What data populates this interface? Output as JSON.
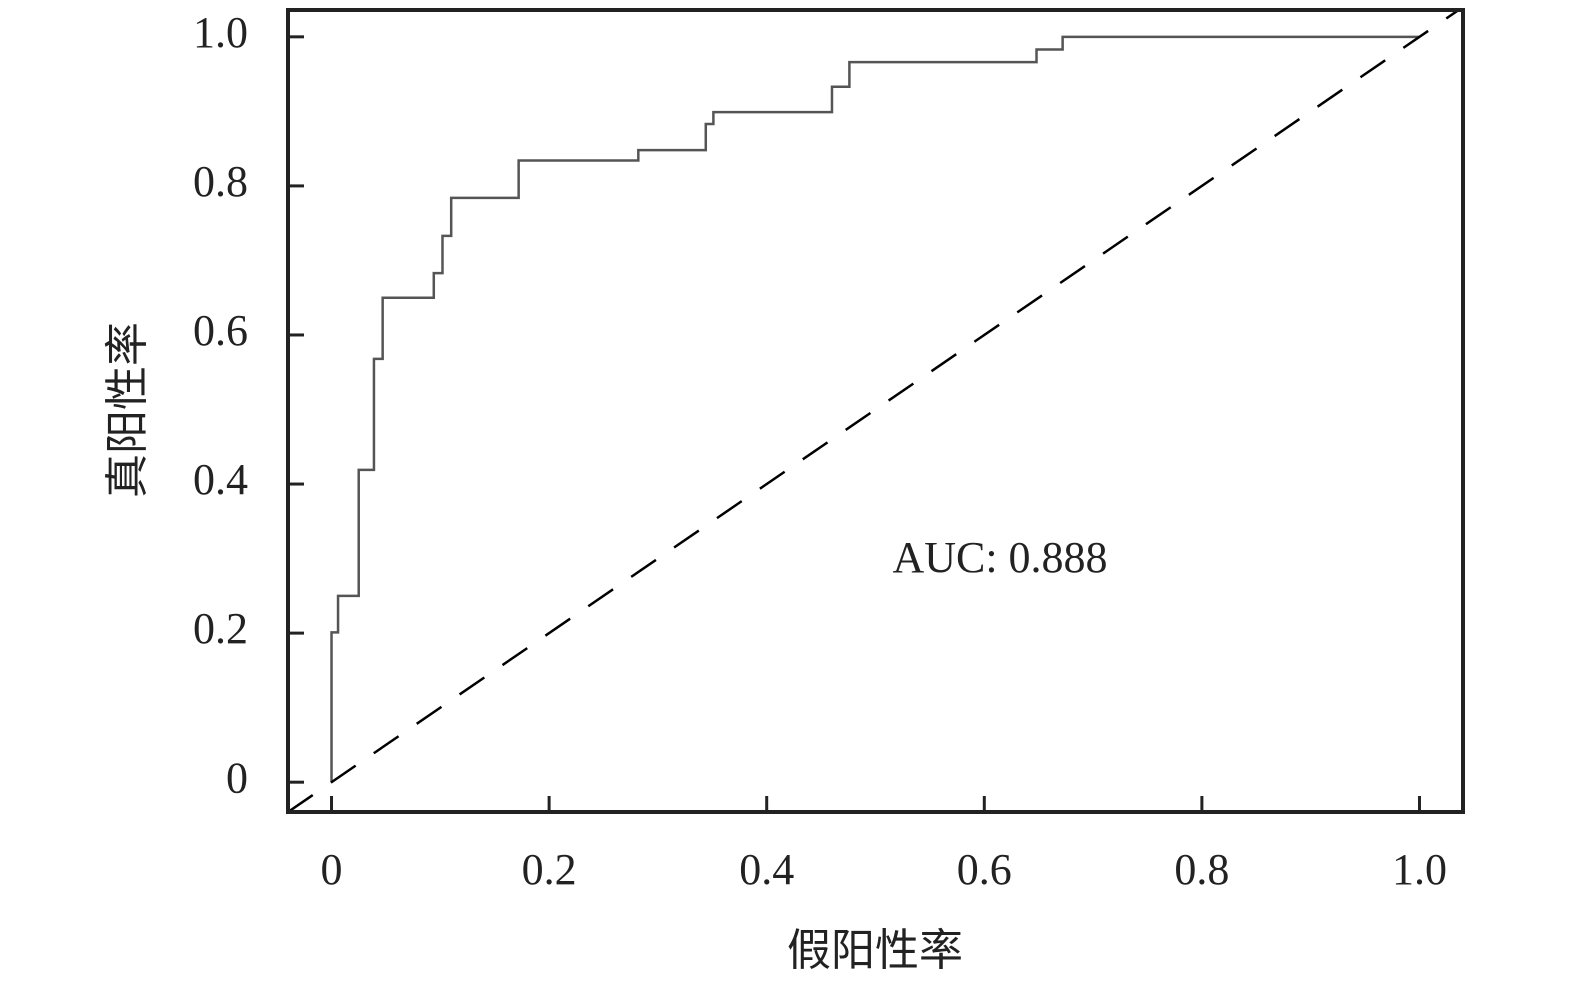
{
  "chart_data": {
    "type": "line",
    "xlabel": "假阳性率",
    "ylabel": "真阳性率",
    "annotation": "AUC: 0.888",
    "series": [
      {
        "color": "#555555",
        "dashed": false,
        "x": [
          0,
          0,
          0.006,
          0.006,
          0.025,
          0.025,
          0.039,
          0.039,
          0.047,
          0.047,
          0.094,
          0.094,
          0.102,
          0.102,
          0.11,
          0.11,
          0.172,
          0.172,
          0.282,
          0.282,
          0.344,
          0.344,
          0.351,
          0.351,
          0.46,
          0.46,
          0.476,
          0.476,
          0.648,
          0.648,
          0.672,
          0.672,
          1
        ],
        "values": [
          0,
          0.201,
          0.201,
          0.25,
          0.25,
          0.419,
          0.419,
          0.568,
          0.568,
          0.65,
          0.65,
          0.683,
          0.683,
          0.733,
          0.733,
          0.784,
          0.784,
          0.834,
          0.834,
          0.848,
          0.848,
          0.883,
          0.883,
          0.899,
          0.899,
          0.933,
          0.933,
          0.966,
          0.966,
          0.983,
          0.983,
          1,
          1
        ]
      },
      {
        "color": "#000000",
        "dashed": true,
        "x": [
          -0.04,
          1.04
        ],
        "values": [
          -0.04,
          1.04
        ]
      }
    ],
    "xlim": [
      -0.04,
      1.04
    ],
    "ylim": [
      -0.04,
      1.036
    ],
    "xticks": [
      0,
      0.2,
      0.4,
      0.6,
      0.8,
      {
        "value": 1,
        "label": "1.0"
      }
    ],
    "yticks": [
      0,
      0.2,
      0.4,
      0.6,
      0.8,
      {
        "value": 1,
        "label": "1.0"
      }
    ],
    "grid": false
  }
}
